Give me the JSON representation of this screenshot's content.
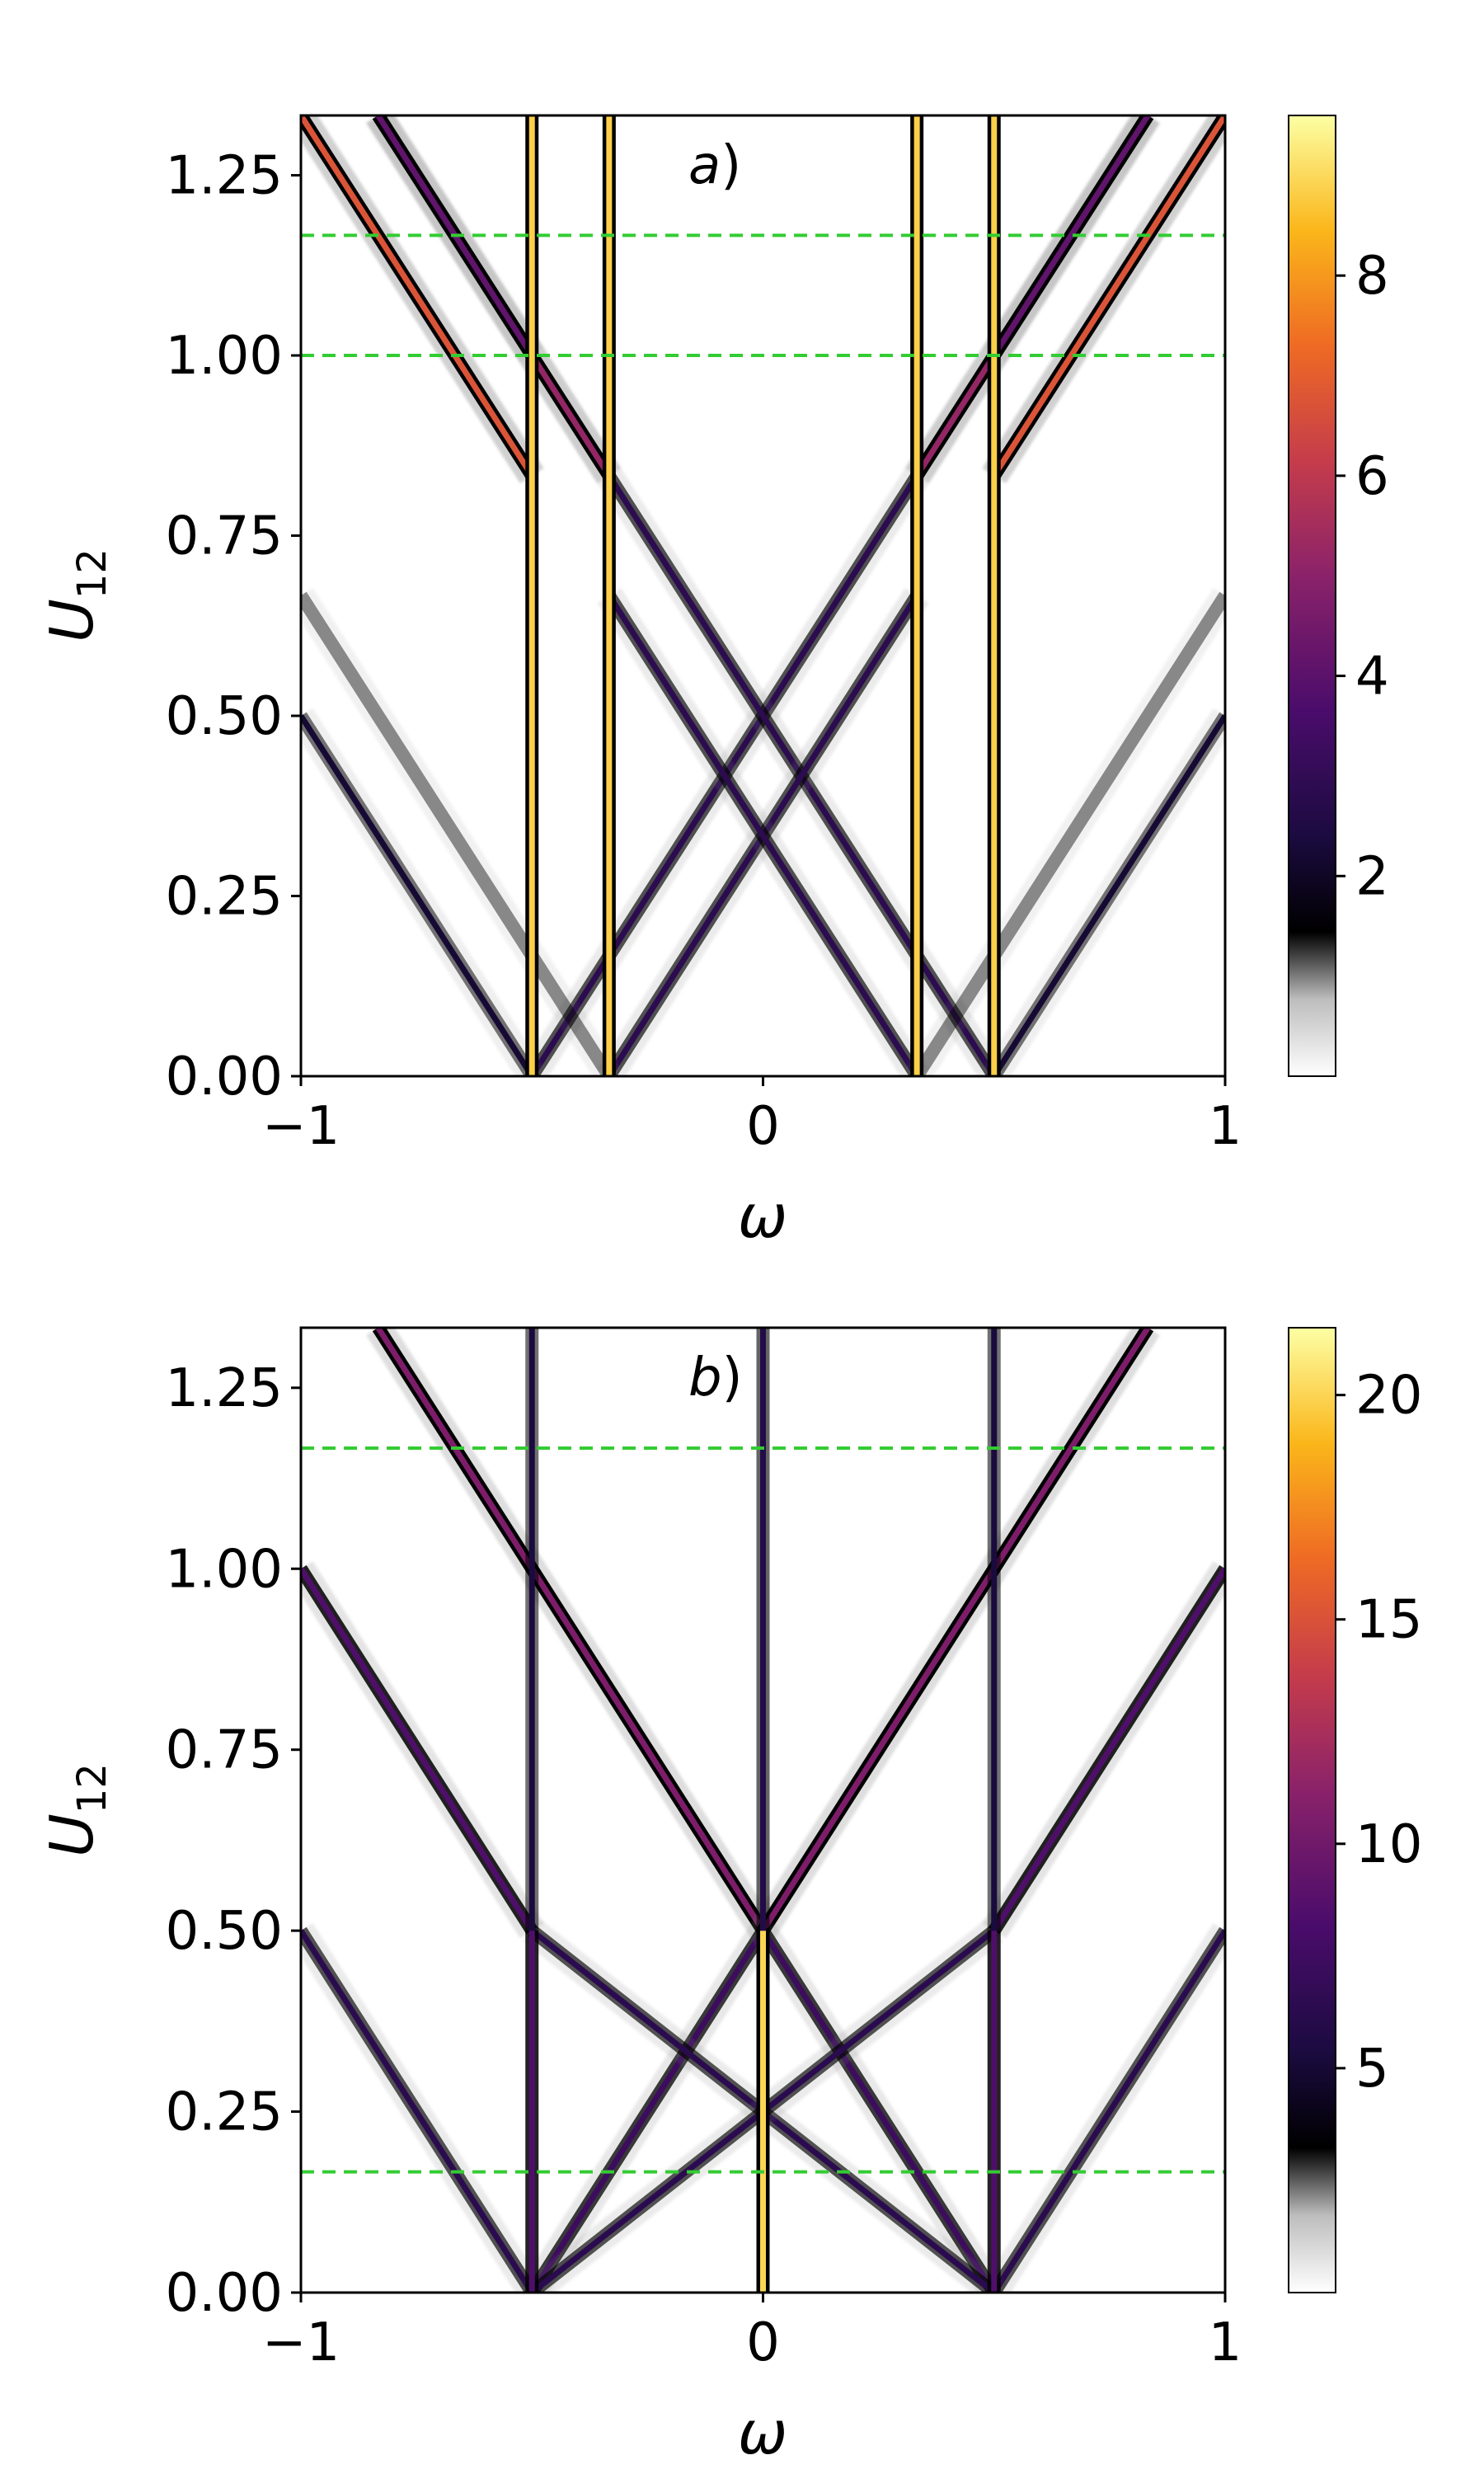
{
  "figure": {
    "panels": [
      {
        "panel_label_italic": "a",
        "panel_label_paren": ")",
        "xlabel": "ω",
        "ylabel_main": "U",
        "ylabel_sub": "12",
        "xticks": [
          "−1",
          "0",
          "1"
        ],
        "yticks": [
          "0.00",
          "0.25",
          "0.50",
          "0.75",
          "1.00",
          "1.25"
        ],
        "colorbar_ticks": [
          "2",
          "4",
          "6",
          "8"
        ]
      },
      {
        "panel_label_italic": "b",
        "panel_label_paren": ")",
        "xlabel": "ω",
        "ylabel_main": "U",
        "ylabel_sub": "12",
        "xticks": [
          "−1",
          "0",
          "1"
        ],
        "yticks": [
          "0.00",
          "0.25",
          "0.50",
          "0.75",
          "1.00",
          "1.25"
        ],
        "colorbar_ticks": [
          "5",
          "10",
          "15",
          "20"
        ]
      }
    ]
  },
  "chart_data": [
    {
      "type": "heatmap",
      "panel": "a",
      "xlabel": "ω",
      "ylabel": "U12",
      "xlim": [
        -1,
        1
      ],
      "ylim": [
        0,
        1.333
      ],
      "xticks": [
        -1,
        0,
        1
      ],
      "yticks": [
        0,
        0.25,
        0.5,
        0.75,
        1.0,
        1.25
      ],
      "colormap": "inferno (reversed to white at low values)",
      "colorbar": {
        "range": [
          0,
          9.6
        ],
        "ticks": [
          2,
          4,
          6,
          8
        ]
      },
      "reference_lines": [
        {
          "orientation": "horizontal",
          "y": 1.0,
          "style": "dashed",
          "color": "#33cc33"
        },
        {
          "orientation": "horizontal",
          "y": 1.1667,
          "style": "dashed",
          "color": "#33cc33"
        }
      ],
      "features": {
        "vertical_bands": [
          {
            "omega": -0.5,
            "from_U": 0,
            "to_U": 1.333,
            "intensity": 7.5
          },
          {
            "omega": -0.333,
            "from_U": 0,
            "to_U": 1.333,
            "intensity": 7.5
          },
          {
            "omega": 0.333,
            "from_U": 0,
            "to_U": 1.333,
            "intensity": 7.5
          },
          {
            "omega": 0.5,
            "from_U": 0,
            "to_U": 1.333,
            "intensity": 7.5
          }
        ],
        "diagonal_lines": [
          {
            "from": [
              -0.5,
              0.0
            ],
            "to": [
              0.5,
              1.0
            ],
            "intensity": 1.8
          },
          {
            "from": [
              0.5,
              0.0
            ],
            "to": [
              -0.5,
              1.0
            ],
            "intensity": 1.8
          },
          {
            "from": [
              -0.333,
              0.0
            ],
            "to": [
              0.333,
              0.667
            ],
            "intensity": 1.8
          },
          {
            "from": [
              0.333,
              0.0
            ],
            "to": [
              -0.333,
              0.667
            ],
            "intensity": 1.8
          },
          {
            "from": [
              -0.5,
              0.833
            ],
            "to": [
              -1.0,
              1.333
            ],
            "intensity": 5.5
          },
          {
            "from": [
              -0.333,
              0.833
            ],
            "to": [
              -0.833,
              1.333
            ],
            "intensity": 4.0
          },
          {
            "from": [
              -0.5,
              1.0
            ],
            "to": [
              -0.833,
              1.333
            ],
            "intensity": 3.0
          },
          {
            "from": [
              0.5,
              0.833
            ],
            "to": [
              1.0,
              1.333
            ],
            "intensity": 5.5
          },
          {
            "from": [
              0.333,
              0.833
            ],
            "to": [
              0.833,
              1.333
            ],
            "intensity": 4.0
          },
          {
            "from": [
              0.5,
              1.0
            ],
            "to": [
              0.833,
              1.333
            ],
            "intensity": 3.0
          },
          {
            "from": [
              -0.5,
              0.0
            ],
            "to": [
              -1.0,
              0.5
            ],
            "intensity": 1.2
          },
          {
            "from": [
              -0.333,
              0.0
            ],
            "to": [
              -1.0,
              0.667
            ],
            "intensity": 0.8
          },
          {
            "from": [
              0.5,
              0.0
            ],
            "to": [
              1.0,
              0.5
            ],
            "intensity": 1.2
          },
          {
            "from": [
              0.333,
              0.0
            ],
            "to": [
              1.0,
              0.667
            ],
            "intensity": 0.8
          }
        ]
      }
    },
    {
      "type": "heatmap",
      "panel": "b",
      "xlabel": "ω",
      "ylabel": "U12",
      "xlim": [
        -1,
        1
      ],
      "ylim": [
        0,
        1.333
      ],
      "xticks": [
        -1,
        0,
        1
      ],
      "yticks": [
        0,
        0.25,
        0.5,
        0.75,
        1.0,
        1.25
      ],
      "colormap": "inferno (reversed to white at low values)",
      "colorbar": {
        "range": [
          0,
          21.5
        ],
        "ticks": [
          5,
          10,
          15,
          20
        ]
      },
      "reference_lines": [
        {
          "orientation": "horizontal",
          "y": 0.1667,
          "style": "dashed",
          "color": "#33cc33"
        },
        {
          "orientation": "horizontal",
          "y": 1.1667,
          "style": "dashed",
          "color": "#33cc33"
        }
      ],
      "features": {
        "vertical_bands": [
          {
            "omega": 0.0,
            "from_U": 0,
            "to_U": 0.5,
            "intensity": 17
          },
          {
            "omega": 0.0,
            "from_U": 0.5,
            "to_U": 1.333,
            "intensity": 3.5
          },
          {
            "omega": -0.5,
            "from_U": 0,
            "to_U": 0.5,
            "intensity": 6
          },
          {
            "omega": 0.5,
            "from_U": 0,
            "to_U": 0.5,
            "intensity": 6
          },
          {
            "omega": -0.5,
            "from_U": 0.5,
            "to_U": 1.333,
            "intensity": 3
          },
          {
            "omega": 0.5,
            "from_U": 0.5,
            "to_U": 1.333,
            "intensity": 3
          }
        ],
        "diagonal_lines": [
          {
            "from": [
              0.0,
              0.5
            ],
            "to": [
              -0.833,
              1.333
            ],
            "intensity": 8
          },
          {
            "from": [
              0.0,
              0.5
            ],
            "to": [
              0.833,
              1.333
            ],
            "intensity": 8
          },
          {
            "from": [
              0.0,
              0.5
            ],
            "to": [
              -0.5,
              0.0
            ],
            "intensity": 5
          },
          {
            "from": [
              0.0,
              0.5
            ],
            "to": [
              0.5,
              0.0
            ],
            "intensity": 5
          },
          {
            "from": [
              -0.5,
              0.5
            ],
            "to": [
              -1.0,
              1.0
            ],
            "intensity": 6
          },
          {
            "from": [
              0.5,
              0.5
            ],
            "to": [
              1.0,
              1.0
            ],
            "intensity": 6
          },
          {
            "from": [
              -0.5,
              0.0
            ],
            "to": [
              -1.0,
              0.5
            ],
            "intensity": 4
          },
          {
            "from": [
              0.5,
              0.0
            ],
            "to": [
              1.0,
              0.5
            ],
            "intensity": 4
          },
          {
            "from": [
              -0.5,
              0.5
            ],
            "to": [
              0.5,
              0.0
            ],
            "intensity": 4
          },
          {
            "from": [
              0.5,
              0.5
            ],
            "to": [
              -0.5,
              0.0
            ],
            "intensity": 4
          }
        ]
      }
    }
  ]
}
